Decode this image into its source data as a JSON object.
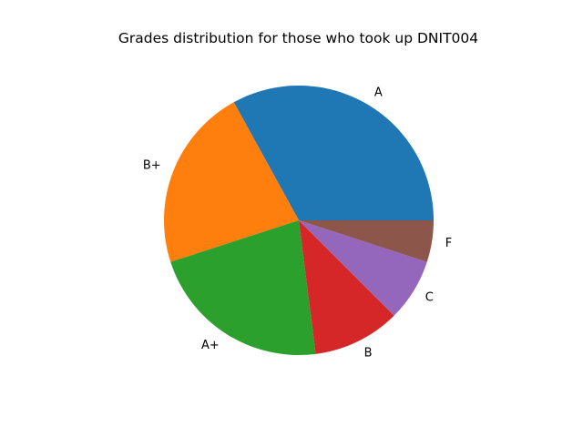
{
  "chart_data": {
    "type": "pie",
    "title": "Grades distribution for those who took up DNIT004",
    "categories": [
      "A",
      "B+",
      "A+",
      "B",
      "C",
      "F"
    ],
    "values": [
      33,
      22,
      22,
      10.5,
      7.5,
      5
    ],
    "colors": [
      "#1f77b4",
      "#ff7f0e",
      "#2ca02c",
      "#d62728",
      "#9467bd",
      "#8c564b"
    ],
    "start_angle_deg": 0,
    "direction": "counterclockwise",
    "legend": "none"
  }
}
